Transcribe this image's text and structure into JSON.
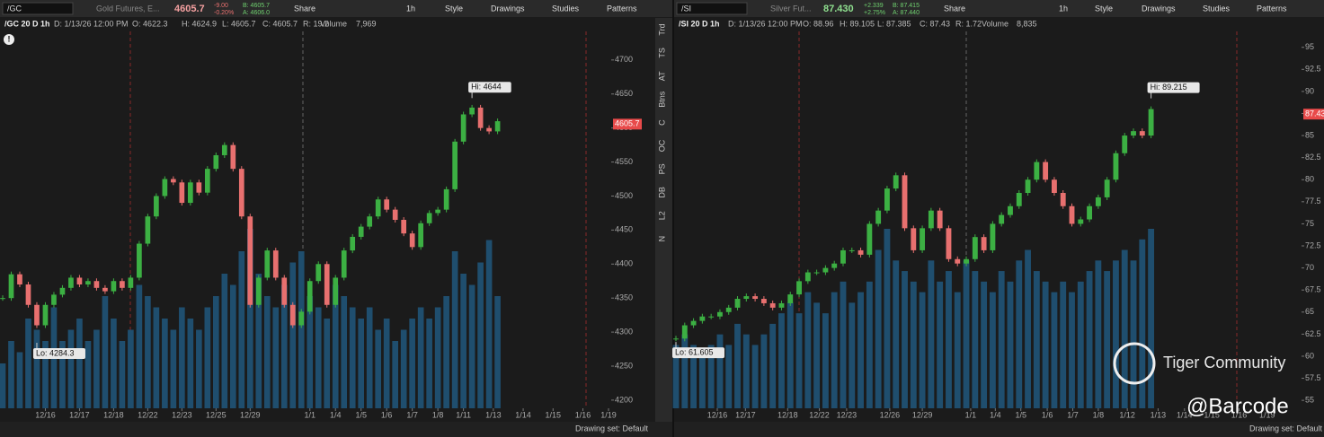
{
  "panels": [
    {
      "toolbar": {
        "symbol": "/GC",
        "description": "Gold Futures, E...",
        "last": "4605.7",
        "change": "-9.00",
        "change_pct": "-0.20%",
        "bid": "B: 4605.7",
        "ask": "A: 4606.0",
        "buttons": [
          "Share",
          "1h",
          "Style",
          "Drawings",
          "Studies",
          "Patterns"
        ]
      },
      "header": [
        "/GC 20 D 1h",
        "D: 1/13/26 12:00 PM",
        "O: 4622.3",
        "H: 4624.9",
        "L: 4605.7",
        "C: 4605.7",
        "R: 19.2",
        "Volume",
        "7,969"
      ],
      "side_tabs": [
        "Trd",
        "TS",
        "AT",
        "Btns",
        "C",
        "OC",
        "PS",
        "DB",
        "L2",
        "N"
      ],
      "footer": "Drawing set: Default"
    },
    {
      "toolbar": {
        "symbol": "/SI",
        "description": "Silver Fut...",
        "last": "87.430",
        "change": "+2.339",
        "change_pct": "+2.75%",
        "bid": "B: 87.415",
        "ask": "A: 87.440",
        "buttons": [
          "Share",
          "1h",
          "Style",
          "Drawings",
          "Studies",
          "Patterns"
        ]
      },
      "header": [
        "/SI 20 D 1h",
        "D: 1/13/26 12:00 PM",
        "O: 88.96",
        "H: 89.105",
        "L: 87.385",
        "C: 87.43",
        "R: 1.72",
        "Volume",
        "8,835"
      ],
      "footer": "Drawing set: Default"
    }
  ],
  "chart_data": [
    {
      "type": "candlestick",
      "up_color": "#3cb043",
      "down_color": "#e8706f",
      "volume_color": "#1f4e6e",
      "ylim": [
        4188,
        4742
      ],
      "yticks": [
        4200,
        4250,
        4300,
        4350,
        4400,
        4450,
        4500,
        4550,
        4600,
        4650,
        4700
      ],
      "xlim": [
        0,
        71
      ],
      "xticks": [
        {
          "value": 5,
          "label": "12/16"
        },
        {
          "value": 9,
          "label": "12/17"
        },
        {
          "value": 13,
          "label": "12/18"
        },
        {
          "value": 17,
          "label": "12/22"
        },
        {
          "value": 21,
          "label": "12/23"
        },
        {
          "value": 25,
          "label": "12/25"
        },
        {
          "value": 29,
          "label": "12/29"
        },
        {
          "value": 36,
          "label": "1/1"
        },
        {
          "value": 39,
          "label": "1/4"
        },
        {
          "value": 42,
          "label": "1/5"
        },
        {
          "value": 45,
          "label": "1/6"
        },
        {
          "value": 48,
          "label": "1/7"
        },
        {
          "value": 51,
          "label": "1/8"
        },
        {
          "value": 54,
          "label": "1/11"
        },
        {
          "value": 57.5,
          "label": "1/13"
        },
        {
          "value": 61,
          "label": "1/14"
        },
        {
          "value": 64.5,
          "label": "1/15"
        },
        {
          "value": 68,
          "label": "1/16"
        },
        {
          "value": 71,
          "label": "1/19"
        }
      ],
      "values": [
        4350,
        4385,
        4370,
        4340,
        4310,
        4340,
        4355,
        4365,
        4380,
        4370,
        4375,
        4365,
        4360,
        4375,
        4365,
        4380,
        4430,
        4470,
        4500,
        4525,
        4520,
        4490,
        4520,
        4505,
        4540,
        4560,
        4575,
        4540,
        4470,
        4340,
        4380,
        4420,
        4380,
        4340,
        4310,
        4330,
        4375,
        4400,
        4340,
        4380,
        4420,
        4440,
        4455,
        4470,
        4495,
        4480,
        4465,
        4445,
        4425,
        4460,
        4475,
        4480,
        4510,
        4580,
        4620,
        4630,
        4600,
        4595,
        4610
      ],
      "volume": [
        20,
        30,
        25,
        40,
        35,
        30,
        45,
        30,
        35,
        40,
        30,
        35,
        50,
        40,
        30,
        35,
        55,
        50,
        45,
        40,
        35,
        45,
        40,
        35,
        45,
        50,
        60,
        55,
        70,
        80,
        60,
        50,
        45,
        55,
        65,
        70,
        50,
        45,
        40,
        55,
        50,
        45,
        40,
        45,
        35,
        40,
        30,
        35,
        40,
        45,
        40,
        45,
        50,
        70,
        60,
        55,
        65,
        75,
        50
      ],
      "hi": {
        "value": 4644,
        "label": "Hi: 4644"
      },
      "lo": {
        "value": 4284.3,
        "label": "Lo: 4284.3"
      },
      "last_price": 4605.7
    },
    {
      "type": "candlestick",
      "up_color": "#3cb043",
      "down_color": "#e8706f",
      "volume_color": "#1f4e6e",
      "ylim": [
        54.1,
        96.8
      ],
      "yticks": [
        55,
        57.5,
        60,
        62.5,
        65,
        67.5,
        70,
        72.5,
        75,
        77.5,
        80,
        82.5,
        85,
        87.5,
        90,
        92.5,
        95
      ],
      "xlim": [
        0,
        71
      ],
      "xticks": [
        {
          "value": 4.7,
          "label": "12/16"
        },
        {
          "value": 7.9,
          "label": "12/17"
        },
        {
          "value": 12.7,
          "label": "12/18"
        },
        {
          "value": 16.3,
          "label": "12/22"
        },
        {
          "value": 19.4,
          "label": "12/23"
        },
        {
          "value": 24.3,
          "label": "12/26"
        },
        {
          "value": 28,
          "label": "12/29"
        },
        {
          "value": 33.5,
          "label": "1/1"
        },
        {
          "value": 36.3,
          "label": "1/4"
        },
        {
          "value": 39.2,
          "label": "1/5"
        },
        {
          "value": 42.2,
          "label": "1/6"
        },
        {
          "value": 45.1,
          "label": "1/7"
        },
        {
          "value": 48,
          "label": "1/8"
        },
        {
          "value": 51.3,
          "label": "1/12"
        },
        {
          "value": 54.8,
          "label": "1/13"
        },
        {
          "value": 57.8,
          "label": "1/14"
        },
        {
          "value": 60.9,
          "label": "1/15"
        },
        {
          "value": 64,
          "label": "1/16"
        },
        {
          "value": 67.2,
          "label": "1/19"
        }
      ],
      "values": [
        62,
        63.5,
        64,
        64.5,
        64.5,
        65,
        65.5,
        66.5,
        66.8,
        66.5,
        66,
        65.5,
        66,
        67,
        68.5,
        69.5,
        69.5,
        70,
        70.5,
        72,
        72,
        71.5,
        75,
        76.5,
        79,
        80.5,
        74.5,
        72,
        74.5,
        76.5,
        74.5,
        71,
        70.5,
        71,
        73.5,
        72,
        75,
        76,
        77,
        78.5,
        80,
        82,
        80,
        78.5,
        77,
        75,
        75.5,
        77,
        78,
        80,
        83,
        85,
        85.5,
        85,
        88
      ],
      "volume": [
        30,
        35,
        30,
        25,
        30,
        35,
        30,
        40,
        35,
        30,
        35,
        40,
        45,
        50,
        45,
        55,
        50,
        45,
        55,
        60,
        50,
        55,
        60,
        75,
        85,
        70,
        65,
        60,
        55,
        70,
        60,
        65,
        55,
        70,
        65,
        60,
        55,
        65,
        60,
        70,
        75,
        65,
        60,
        55,
        60,
        55,
        60,
        65,
        70,
        65,
        70,
        75,
        70,
        80,
        85
      ],
      "hi": {
        "value": 89.215,
        "label": "Hi: 89.215"
      },
      "lo": {
        "value": 61.605,
        "label": "Lo: 61.605"
      },
      "last_price": 87.43
    }
  ],
  "watermark": {
    "brand": "Tiger Community",
    "handle": "@Barcode"
  }
}
